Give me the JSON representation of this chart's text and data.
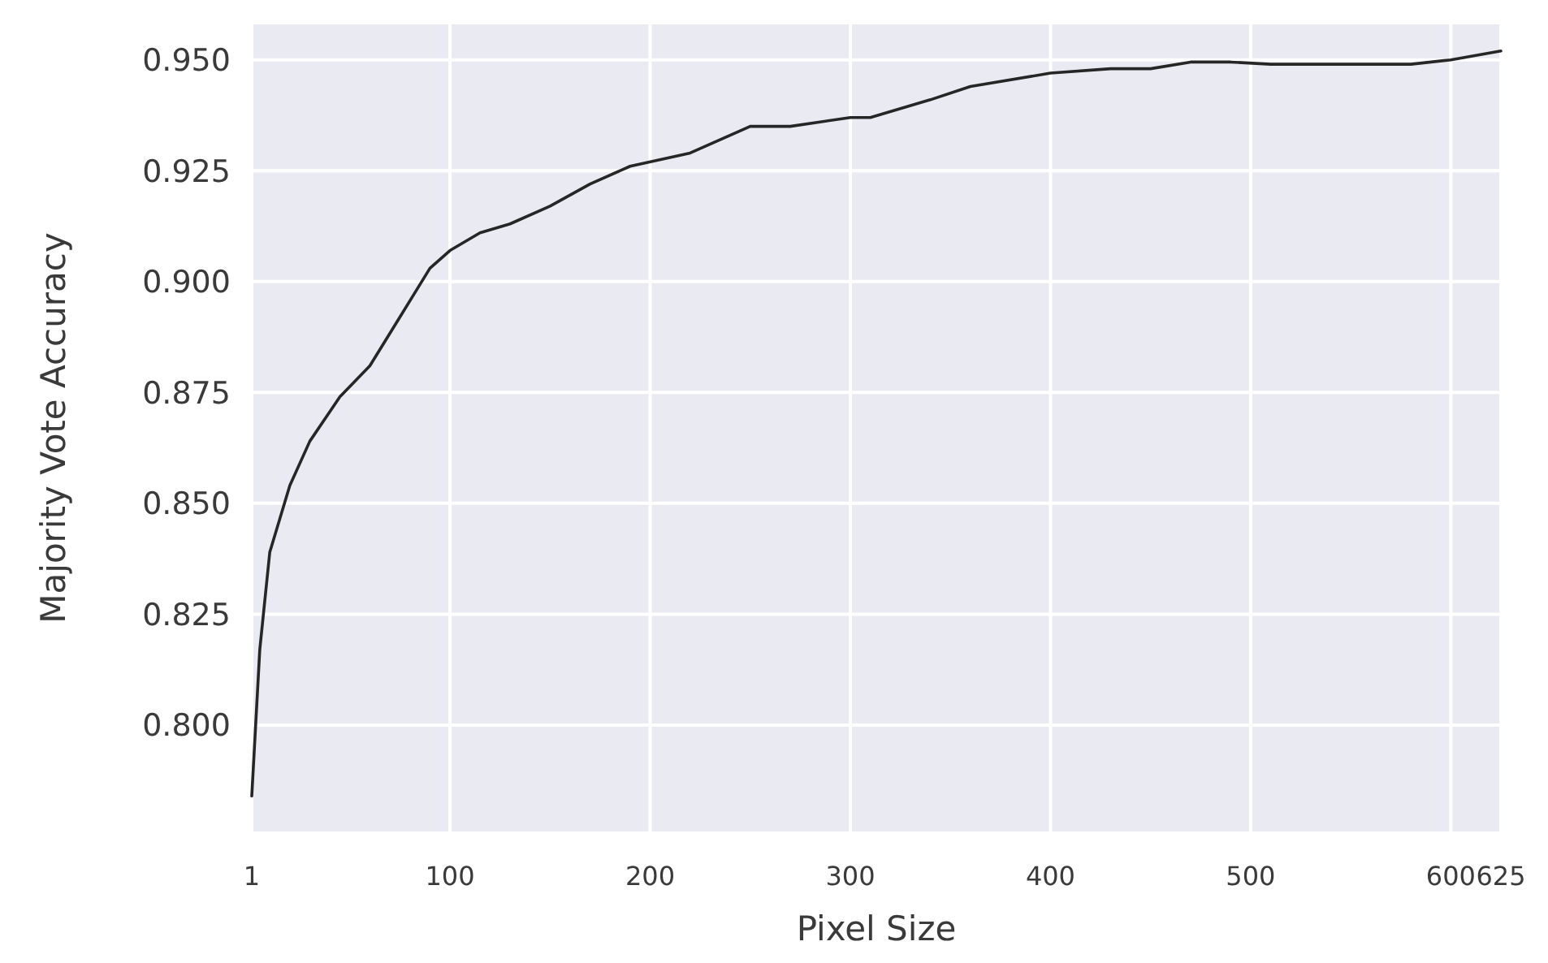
{
  "chart_data": {
    "type": "line",
    "xlabel": "Pixel Size",
    "ylabel": "Majority Vote Accuracy",
    "x": [
      1,
      5,
      10,
      20,
      30,
      45,
      60,
      75,
      90,
      100,
      115,
      130,
      150,
      170,
      190,
      220,
      250,
      270,
      300,
      310,
      340,
      360,
      400,
      430,
      450,
      470,
      490,
      510,
      550,
      580,
      600,
      625
    ],
    "series": [
      {
        "color": "#262626",
        "values": [
          0.784,
          0.817,
          0.839,
          0.854,
          0.864,
          0.874,
          0.881,
          0.892,
          0.903,
          0.907,
          0.911,
          0.913,
          0.917,
          0.922,
          0.926,
          0.929,
          0.935,
          0.935,
          0.937,
          0.937,
          0.941,
          0.944,
          0.947,
          0.948,
          0.948,
          0.9495,
          0.9495,
          0.949,
          0.949,
          0.949,
          0.95,
          0.952
        ]
      }
    ],
    "xlim": [
      1,
      625
    ],
    "ylim": [
      0.776,
      0.958
    ],
    "xticks": [
      1,
      100,
      200,
      300,
      400,
      500,
      600,
      625
    ],
    "yticks": [
      {
        "value": 0.8,
        "label": "0.800"
      },
      {
        "value": 0.825,
        "label": "0.825"
      },
      {
        "value": 0.85,
        "label": "0.850"
      },
      {
        "value": 0.875,
        "label": "0.875"
      },
      {
        "value": 0.9,
        "label": "0.900"
      },
      {
        "value": 0.925,
        "label": "0.925"
      },
      {
        "value": 0.95,
        "label": "0.950"
      }
    ],
    "grid": true,
    "marker": "none",
    "line_style": "solid"
  }
}
